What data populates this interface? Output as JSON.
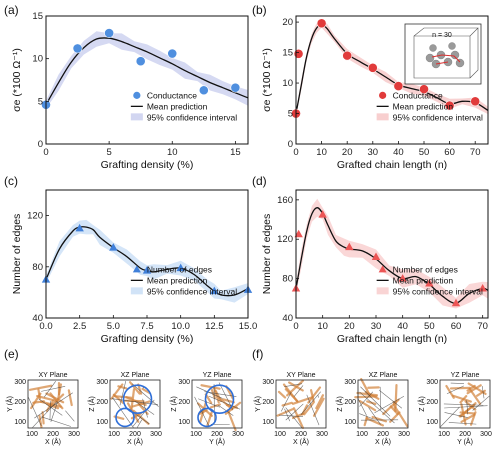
{
  "panel_labels": [
    "(a)",
    "(b)",
    "(c)",
    "(d)",
    "(e)",
    "(f)"
  ],
  "colors": {
    "blue_marker": "#4f8fdf",
    "blue_band": "#c7ccee",
    "red_marker": "#e13b3b",
    "red_band": "#f6c3c3",
    "tri_blue": "#3f7fd9",
    "tri_band_blue": "#c6dcf5",
    "tri_red": "#ec5555",
    "tri_band_red": "#f8c9c9",
    "mean_line": "#111111",
    "circle_blue": "#2f6fd8",
    "fiber_orange": "#d2823a"
  },
  "chart_data": [
    {
      "id": "a",
      "type": "scatter",
      "xlabel": "Grafting density (%)",
      "ylabel": "σe (*100 Ω⁻¹)",
      "xlim": [
        0,
        16
      ],
      "ylim": [
        0,
        15
      ],
      "xticks": [
        0,
        5,
        10,
        15
      ],
      "yticks": [
        0,
        5,
        10,
        15
      ],
      "x": [
        0,
        2.5,
        5,
        7.5,
        10,
        12.5,
        15
      ],
      "y": [
        4.6,
        11.2,
        13.0,
        9.7,
        10.6,
        6.3,
        6.6
      ],
      "mean_x": [
        0,
        1,
        2,
        3,
        4,
        5,
        6,
        7,
        8,
        9,
        10,
        11,
        12,
        13,
        14,
        15,
        16
      ],
      "mean_y": [
        4.6,
        7.2,
        9.6,
        11.3,
        12.3,
        12.4,
        12.0,
        11.4,
        10.8,
        10.1,
        9.4,
        8.6,
        7.9,
        7.2,
        6.6,
        6.0,
        5.4
      ],
      "ci_halfwidth": 0.8,
      "legend": {
        "markers": "Conductance",
        "line": "Mean prediction",
        "band": "95% confidence interval"
      }
    },
    {
      "id": "b",
      "type": "scatter",
      "xlabel": "Grafted chain length (n)",
      "ylabel": "σe (*100 Ω⁻¹)",
      "xlim": [
        0,
        75
      ],
      "ylim": [
        0,
        21
      ],
      "xticks": [
        0,
        10,
        20,
        30,
        40,
        50,
        60,
        70
      ],
      "yticks": [
        0,
        5,
        10,
        15,
        20
      ],
      "x": [
        0,
        1,
        10,
        20,
        30,
        40,
        50,
        60,
        70
      ],
      "y": [
        5.0,
        14.8,
        19.8,
        14.5,
        12.5,
        9.5,
        9.0,
        6.3,
        7.0
      ],
      "mean_x": [
        0,
        2,
        4,
        6,
        8,
        10,
        12,
        15,
        20,
        25,
        30,
        35,
        40,
        45,
        50,
        55,
        60,
        65,
        70,
        75
      ],
      "mean_y": [
        5.0,
        9.5,
        14.0,
        17.2,
        19.0,
        19.6,
        19.0,
        17.3,
        14.8,
        13.5,
        12.3,
        11.0,
        9.7,
        9.1,
        8.6,
        7.6,
        6.6,
        7.0,
        6.8,
        5.5
      ],
      "ci_halfwidth": 0.7,
      "legend": {
        "markers": "Conductance",
        "line": "Mean prediction",
        "band": "95% confidence interval"
      },
      "inset_label": "n = 30"
    },
    {
      "id": "c",
      "type": "line",
      "xlabel": "Grafting density (%)",
      "ylabel": "Number of edges",
      "xlim": [
        0,
        15
      ],
      "ylim": [
        40,
        140
      ],
      "xticks": [
        0.0,
        2.5,
        5.0,
        7.5,
        10.0,
        12.5,
        15.0
      ],
      "xticklabels": [
        "0.0",
        "2.5",
        "5.0",
        "7.5",
        "10.0",
        "12.5",
        "15.0"
      ],
      "yticks": [
        40,
        80,
        120
      ],
      "x": [
        0,
        2.5,
        5,
        7.5,
        10,
        12.5,
        15
      ],
      "y": [
        70,
        110,
        95,
        77,
        79,
        61,
        62
      ],
      "mean_x": [
        0,
        1,
        2,
        2.5,
        3,
        3.5,
        4,
        5,
        6,
        7,
        7.5,
        8,
        9,
        10,
        11,
        12,
        12.5,
        13,
        14,
        15
      ],
      "mean_y": [
        70,
        94,
        108,
        111,
        111,
        109,
        103,
        95,
        88,
        79,
        77,
        76,
        78,
        79,
        74,
        65,
        61,
        58,
        58,
        63
      ],
      "ci_halfwidth": 5,
      "legend": {
        "markers": "Number of edges",
        "line": "Mean prediction",
        "band": "95% confidence interval"
      }
    },
    {
      "id": "d",
      "type": "line",
      "xlabel": "Grafted chain length (n)",
      "ylabel": "Number of edges",
      "xlim": [
        0,
        72
      ],
      "ylim": [
        40,
        170
      ],
      "xticks": [
        0,
        10,
        20,
        30,
        40,
        50,
        60,
        70
      ],
      "yticks": [
        40,
        80,
        120,
        160
      ],
      "x": [
        0,
        1,
        10,
        20,
        30,
        40,
        50,
        60,
        70
      ],
      "y": [
        70,
        125,
        145,
        112,
        102,
        80,
        75,
        55,
        70
      ],
      "mean_x": [
        0,
        2,
        4,
        6,
        8,
        10,
        12,
        15,
        18,
        20,
        25,
        30,
        35,
        40,
        45,
        50,
        55,
        60,
        65,
        70,
        72
      ],
      "mean_y": [
        70,
        100,
        128,
        146,
        152,
        146,
        134,
        118,
        112,
        110,
        108,
        100,
        88,
        80,
        82,
        74,
        62,
        55,
        65,
        70,
        68
      ],
      "ci_halfwidth": 8,
      "legend": {
        "markers": "Number of edges",
        "line": "Mean prediction",
        "band": "95% confidence interval"
      }
    }
  ],
  "projections": {
    "e": {
      "panels": [
        {
          "title": "XY Plane",
          "xlabel": "X (Å)",
          "ylabel": "Y (Å)"
        },
        {
          "title": "XZ Plane",
          "xlabel": "X (Å)",
          "ylabel": "Z (Å)"
        },
        {
          "title": "YZ Plane",
          "xlabel": "Y (Å)",
          "ylabel": "Z (Å)"
        }
      ],
      "ticks": [
        "100",
        "200",
        "300"
      ]
    },
    "f": {
      "panels": [
        {
          "title": "XY Plane",
          "xlabel": "X (Å)",
          "ylabel": "Y (Å)"
        },
        {
          "title": "XZ Plane",
          "xlabel": "X (Å)",
          "ylabel": "Z (Å)"
        },
        {
          "title": "YZ Plane",
          "xlabel": "Y (Å)",
          "ylabel": "Z (Å)"
        }
      ],
      "ticks": [
        "100",
        "200",
        "300"
      ]
    }
  }
}
